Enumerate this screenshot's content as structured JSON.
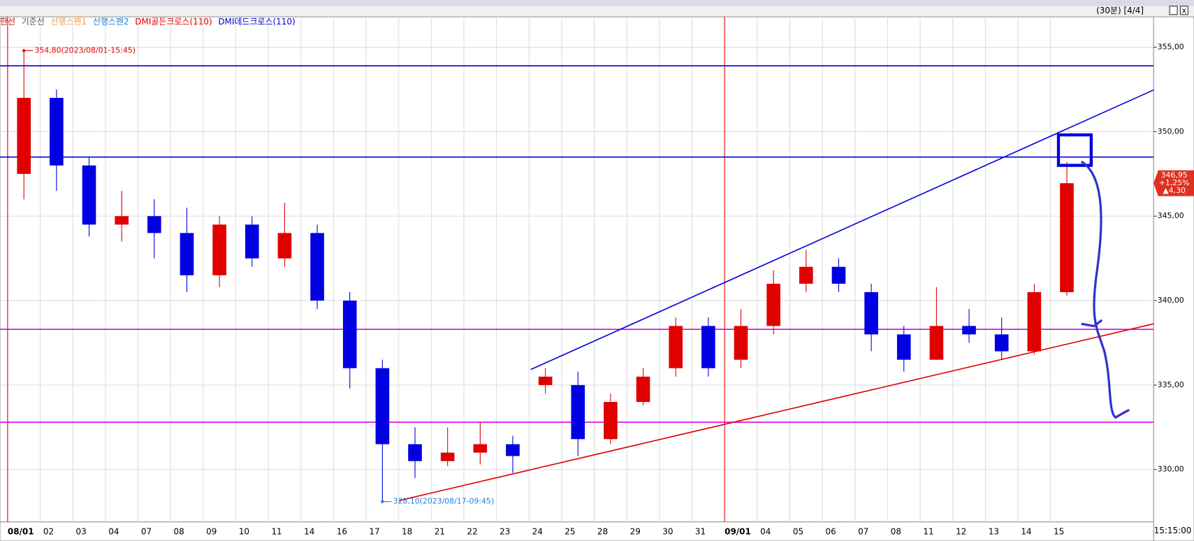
{
  "chart_data": {
    "type": "candlestick",
    "header": "(30분) [4/4]",
    "time_label": "15:15:00",
    "legend": [
      {
        "name": "한선",
        "color": "#d00000"
      },
      {
        "name": "기준선",
        "color": "#555555"
      },
      {
        "name": "선행스팬1",
        "color": "#f39c4a"
      },
      {
        "name": "선행스팬2",
        "color": "#1e7fd8"
      },
      {
        "name": "DMI골든크로스(110)",
        "color": "#e00000"
      },
      {
        "name": "DMI데드크로스(110)",
        "color": "#0000cc"
      }
    ],
    "categories": [
      "08/01",
      "02",
      "03",
      "04",
      "07",
      "08",
      "09",
      "10",
      "11",
      "14",
      "16",
      "17",
      "18",
      "21",
      "22",
      "23",
      "24",
      "25",
      "28",
      "29",
      "30",
      "31",
      "09/01",
      "04",
      "05",
      "06",
      "07",
      "08",
      "11",
      "12",
      "13",
      "14",
      "15"
    ],
    "month_starts": [
      "08/01",
      "09/01"
    ],
    "open": [
      347.5,
      352.0,
      348.0,
      344.5,
      345.0,
      344.0,
      341.5,
      344.5,
      342.5,
      344.0,
      340.0,
      336.0,
      331.5,
      330.5,
      331.0,
      331.5,
      335.0,
      335.0,
      331.8,
      334.0,
      336.0,
      338.5,
      336.5,
      338.5,
      341.0,
      342.0,
      340.5,
      338.0,
      336.5,
      338.5,
      338.0,
      337.0,
      340.5
    ],
    "high": [
      354.8,
      352.5,
      348.5,
      346.5,
      346.0,
      345.5,
      345.0,
      345.0,
      345.8,
      344.5,
      340.5,
      336.5,
      332.5,
      332.5,
      332.8,
      332.0,
      336.0,
      335.8,
      334.5,
      336.0,
      339.0,
      339.0,
      339.5,
      341.8,
      343.0,
      342.5,
      341.0,
      338.5,
      340.8,
      339.5,
      339.0,
      341.0,
      348.2
    ],
    "low": [
      346.0,
      346.5,
      343.8,
      343.5,
      342.5,
      340.5,
      340.8,
      342.0,
      342.0,
      339.5,
      334.8,
      328.1,
      329.5,
      330.2,
      330.3,
      329.8,
      334.5,
      330.8,
      331.5,
      333.8,
      335.5,
      335.5,
      336.0,
      338.0,
      340.5,
      340.5,
      337.0,
      335.8,
      336.5,
      337.5,
      336.5,
      336.8,
      340.3
    ],
    "close": [
      352.0,
      348.0,
      344.5,
      345.0,
      344.0,
      341.5,
      344.5,
      342.5,
      344.0,
      340.0,
      336.0,
      331.5,
      330.5,
      331.0,
      331.5,
      330.8,
      335.5,
      331.8,
      334.0,
      335.5,
      338.5,
      336.0,
      338.5,
      341.0,
      342.0,
      341.0,
      338.0,
      336.5,
      338.5,
      338.0,
      337.0,
      340.5,
      346.95
    ],
    "up_color": "#e00000",
    "down_color": "#0000e0",
    "hlines": [
      {
        "value": 353.9,
        "color": "#0000e0"
      },
      {
        "value": 348.5,
        "color": "#0000e0"
      },
      {
        "value": 338.3,
        "color": "#e000e0"
      },
      {
        "value": 332.8,
        "color": "#e000e0"
      }
    ],
    "annotations": [
      {
        "text": "354,80(2023/08/01-15:45)",
        "value": 354.8,
        "category": "08/01",
        "color": "#e00000"
      },
      {
        "text": "328,10(2023/08/17-09:45)",
        "value": 328.1,
        "category": "17",
        "color": "#1e7fd8"
      }
    ],
    "current": {
      "value": 346.95,
      "label": "346,95",
      "change_pct": "+1,25%",
      "change": "▲4,30",
      "color": "#e03020"
    },
    "ylim": [
      326.9,
      356.8
    ],
    "yticks": [
      {
        "value": 330,
        "label": "330,00"
      },
      {
        "value": 335,
        "label": "335,00"
      },
      {
        "value": 340,
        "label": "340,00"
      },
      {
        "value": 345,
        "label": "345,00"
      },
      {
        "value": 350,
        "label": "350,00"
      },
      {
        "value": 355,
        "label": "355,00"
      }
    ],
    "grid": true
  }
}
